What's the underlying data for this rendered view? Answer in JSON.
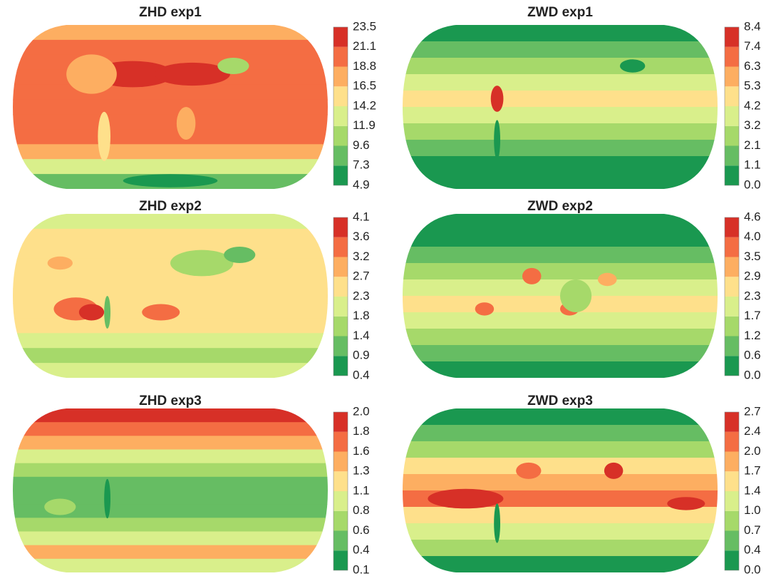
{
  "colors": [
    "#1a9850",
    "#66bd63",
    "#a6d96a",
    "#d9ef8b",
    "#fee08b",
    "#fdae61",
    "#f46d43",
    "#d73027"
  ],
  "panels": [
    {
      "title": "ZHD exp1",
      "ticks": [
        "23.5",
        "21.1",
        "18.8",
        "16.5",
        "14.2",
        "11.9",
        "9.6",
        "7.3",
        "4.9"
      ]
    },
    {
      "title": "ZWD exp1",
      "ticks": [
        "8.4",
        "7.4",
        "6.3",
        "5.3",
        "4.2",
        "3.2",
        "2.1",
        "1.1",
        "0.0"
      ]
    },
    {
      "title": "ZHD exp2",
      "ticks": [
        "4.1",
        "3.6",
        "3.2",
        "2.7",
        "2.3",
        "1.8",
        "1.4",
        "0.9",
        "0.4"
      ]
    },
    {
      "title": "ZWD exp2",
      "ticks": [
        "4.6",
        "4.0",
        "3.5",
        "2.9",
        "2.3",
        "1.7",
        "1.2",
        "0.6",
        "0.0"
      ]
    },
    {
      "title": "ZHD exp3",
      "ticks": [
        "2.0",
        "1.8",
        "1.6",
        "1.3",
        "1.1",
        "0.8",
        "0.6",
        "0.4",
        "0.1"
      ]
    },
    {
      "title": "ZWD exp3",
      "ticks": [
        "2.7",
        "2.4",
        "2.0",
        "1.7",
        "1.4",
        "1.0",
        "0.7",
        "0.4",
        "0.0"
      ]
    }
  ]
}
